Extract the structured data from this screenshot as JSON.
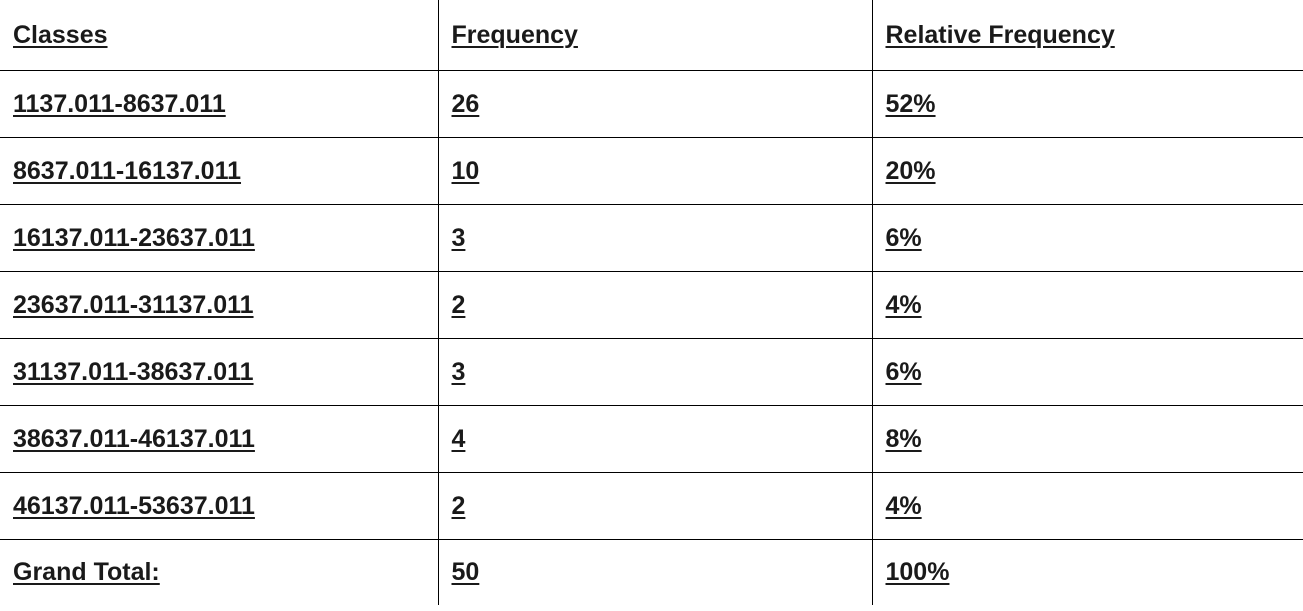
{
  "table": {
    "headers": [
      "Classes",
      "Frequency",
      "Relative Frequency"
    ],
    "rows": [
      {
        "class": "1137.011-8637.011",
        "frequency": "26",
        "relative": "52%"
      },
      {
        "class": "8637.011-16137.011",
        "frequency": "10",
        "relative": "20%"
      },
      {
        "class": "16137.011-23637.011",
        "frequency": "3",
        "relative": "6%"
      },
      {
        "class": "23637.011-31137.011",
        "frequency": "2",
        "relative": "4%"
      },
      {
        "class": "31137.011-38637.011",
        "frequency": "3",
        "relative": "6%"
      },
      {
        "class": "38637.011-46137.011",
        "frequency": "4",
        "relative": "8%"
      },
      {
        "class": "46137.011-53637.011",
        "frequency": "2",
        "relative": "4%"
      }
    ],
    "total": {
      "class": "Grand Total:",
      "frequency": "50",
      "relative": "100%"
    }
  }
}
